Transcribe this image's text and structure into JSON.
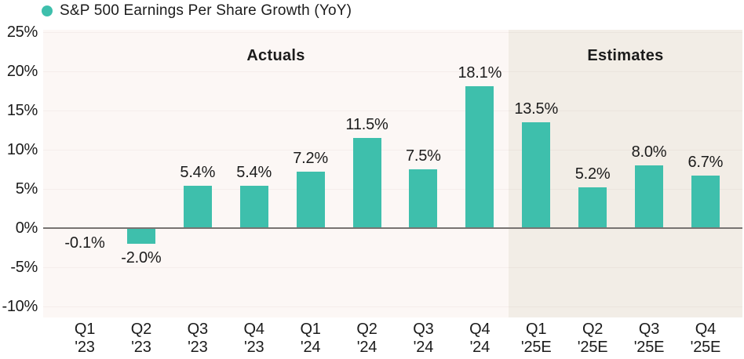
{
  "legend": {
    "label": "S&P 500 Earnings Per Share Growth (YoY)",
    "marker_color": "#3EBFAC"
  },
  "sections": [
    {
      "label": "Actuals",
      "start_index": 0,
      "end_index": 7,
      "background": "#FCF7F5"
    },
    {
      "label": "Estimates",
      "start_index": 8,
      "end_index": 11,
      "background": "#F2EDE6"
    }
  ],
  "chart_data": {
    "type": "bar",
    "title": "S&P 500 Earnings Per Share Growth (YoY)",
    "categories": [
      "Q1 '23",
      "Q2 '23",
      "Q3 '23",
      "Q4 '23",
      "Q1 '24",
      "Q2 '24",
      "Q3 '24",
      "Q4 '24",
      "Q1 '25E",
      "Q2 '25E",
      "Q3 '25E",
      "Q4 '25E"
    ],
    "category_lines": [
      [
        "Q1",
        "'23"
      ],
      [
        "Q2",
        "'23"
      ],
      [
        "Q3",
        "'23"
      ],
      [
        "Q4",
        "'23"
      ],
      [
        "Q1",
        "'24"
      ],
      [
        "Q2",
        "'24"
      ],
      [
        "Q3",
        "'24"
      ],
      [
        "Q4",
        "'24"
      ],
      [
        "Q1",
        "'25E"
      ],
      [
        "Q2",
        "'25E"
      ],
      [
        "Q3",
        "'25E"
      ],
      [
        "Q4",
        "'25E"
      ]
    ],
    "values": [
      -0.1,
      -2.0,
      5.4,
      5.4,
      7.2,
      11.5,
      7.5,
      18.1,
      13.5,
      5.2,
      8.0,
      6.7
    ],
    "value_labels": [
      "-0.1%",
      "-2.0%",
      "5.4%",
      "5.4%",
      "7.2%",
      "11.5%",
      "7.5%",
      "18.1%",
      "13.5%",
      "5.2%",
      "8.0%",
      "6.7%"
    ],
    "yticks": [
      25,
      20,
      15,
      10,
      5,
      0,
      -5,
      -10
    ],
    "ytick_labels": [
      "25%",
      "20%",
      "15%",
      "10%",
      "5%",
      "0%",
      "-5%",
      "-10%"
    ],
    "ylim": [
      -11.4,
      25.3
    ],
    "xlabel": "",
    "ylabel": "",
    "grid": "faint-horizontal",
    "legend_position": "top-left",
    "bar_color": "#3EBFAC"
  },
  "colors": {
    "bar": "#3EBFAC",
    "actuals_background": "#FCF7F5",
    "estimates_background": "#F2EDE6",
    "page_background": "#FFFFFF",
    "zero_line": "#777472",
    "text": "#1B1B1B"
  }
}
